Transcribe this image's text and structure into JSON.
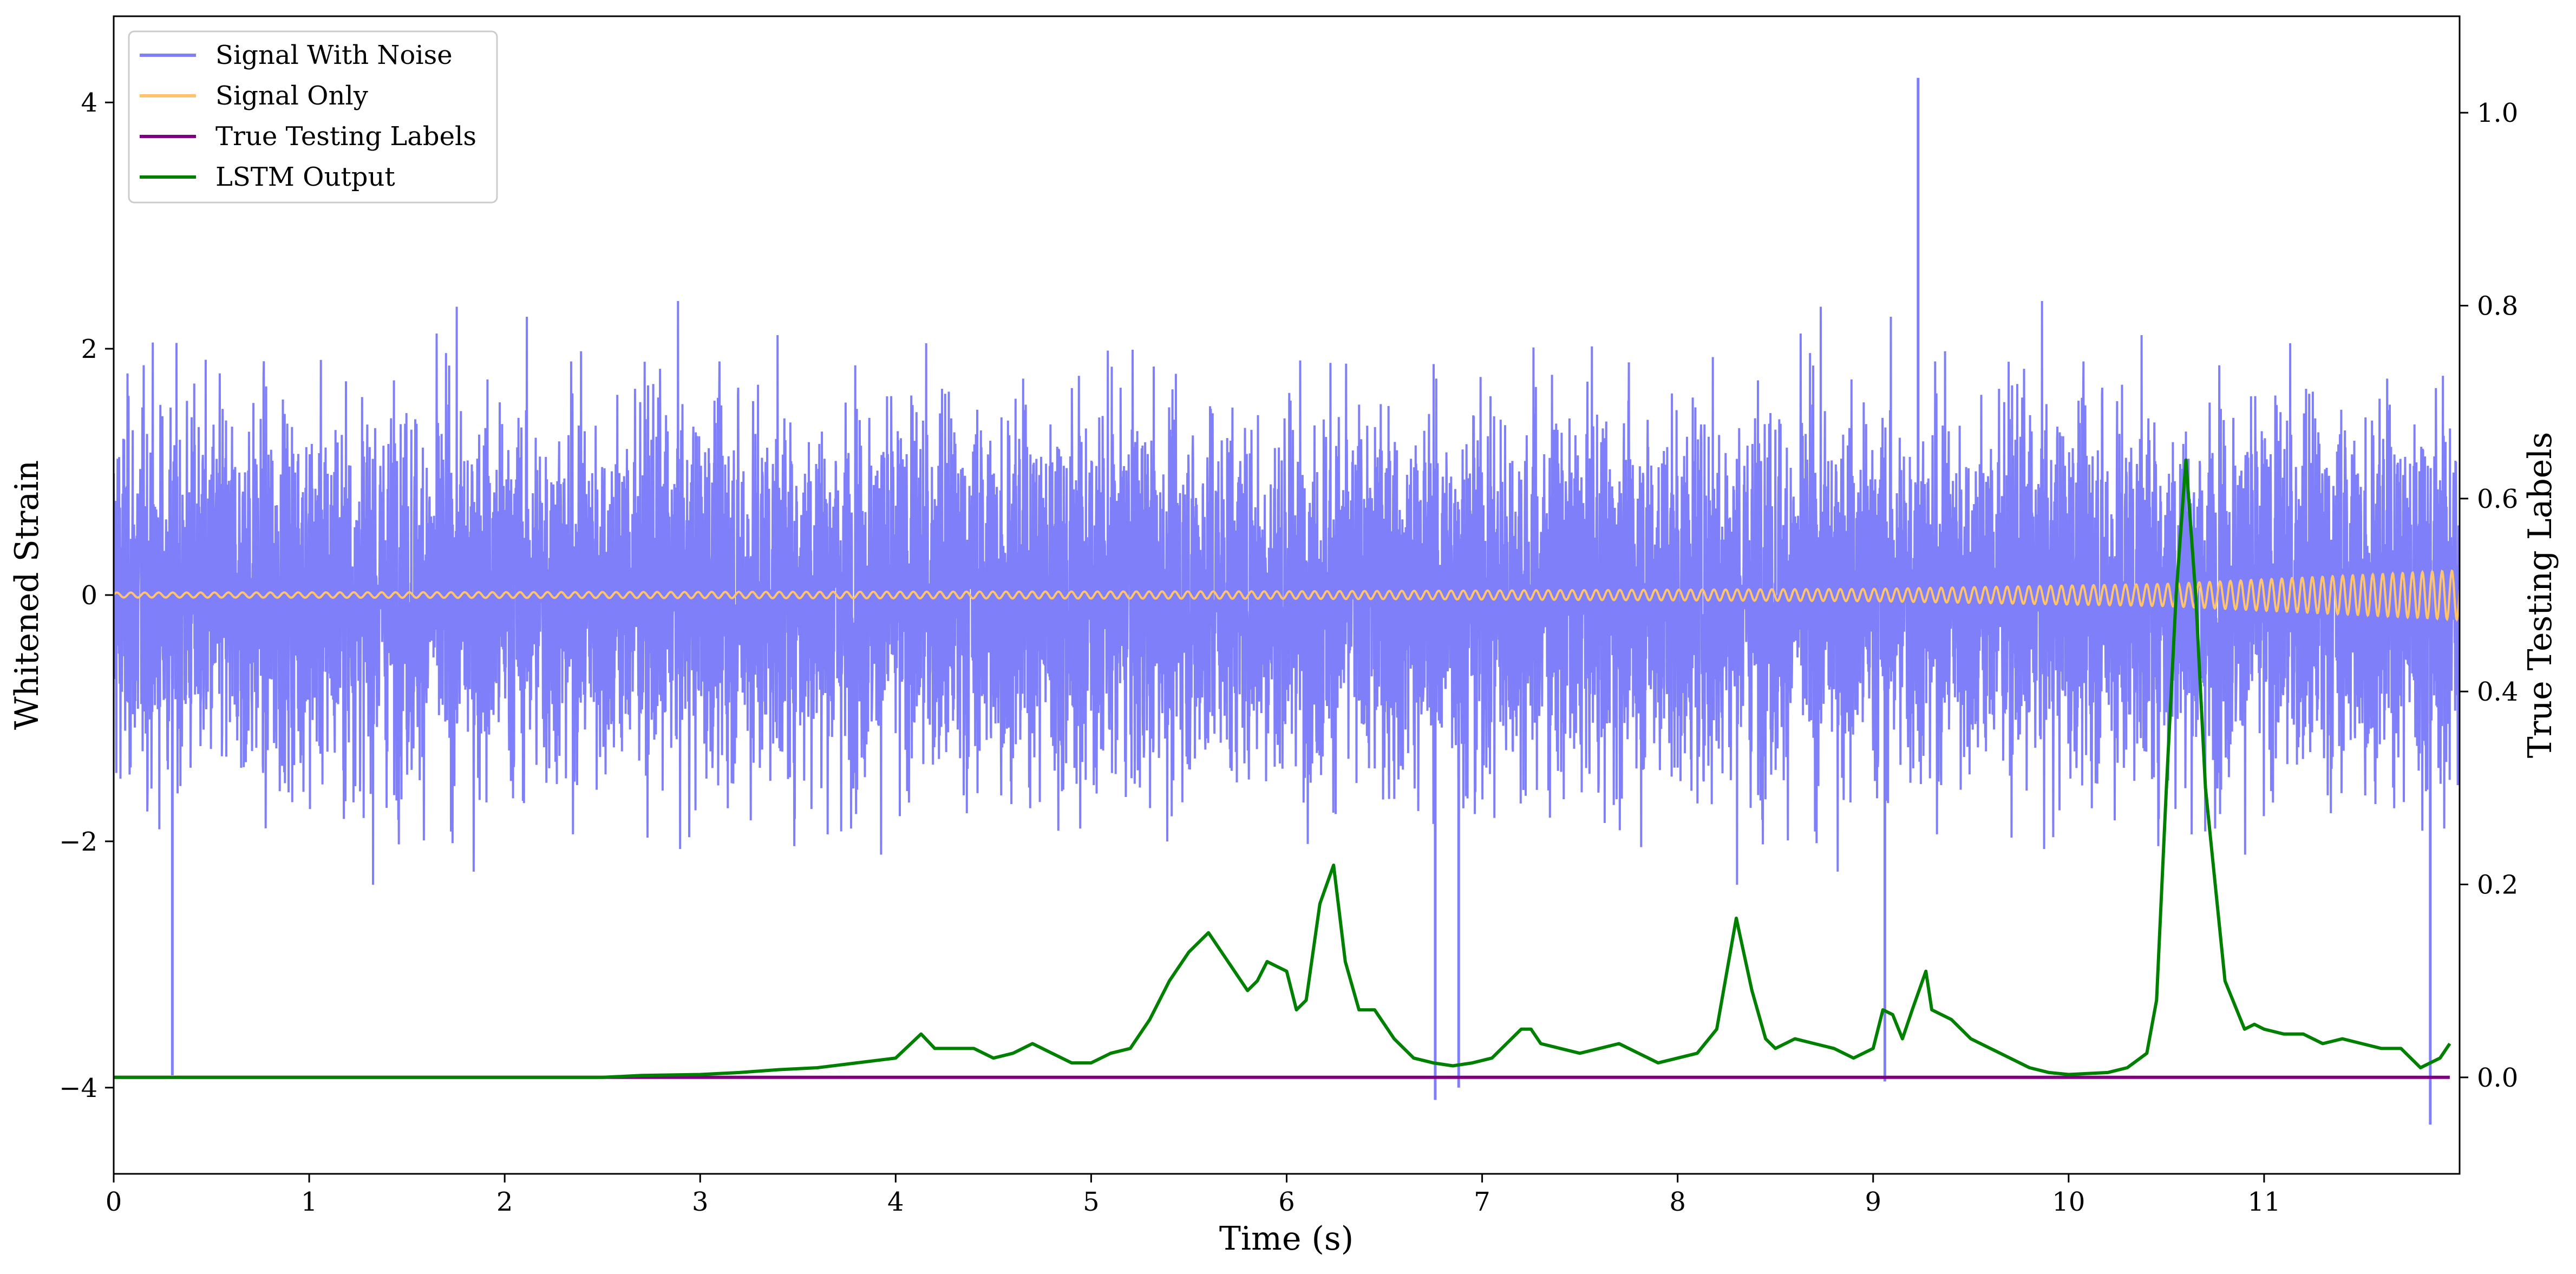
{
  "chart_data": {
    "type": "line",
    "xlabel": "Time (s)",
    "ylabel": "Whitened Strain",
    "y2label": "True Testing Labels",
    "xlim": [
      0,
      12
    ],
    "ylim": [
      -4.7,
      4.7
    ],
    "y2lim": [
      -0.1,
      1.1
    ],
    "x_ticks": [
      0,
      1,
      2,
      3,
      4,
      5,
      6,
      7,
      8,
      9,
      10,
      11
    ],
    "y_ticks": [
      -4,
      -2,
      0,
      2,
      4
    ],
    "y_tick_labels": [
      "−4",
      "−2",
      "0",
      "2",
      "4"
    ],
    "y2_ticks": [
      0.0,
      0.2,
      0.4,
      0.6,
      0.8,
      1.0
    ],
    "y2_tick_labels": [
      "0.0",
      "0.2",
      "0.4",
      "0.6",
      "0.8",
      "1.0"
    ],
    "grid": false,
    "legend_position": "top-left",
    "legend": [
      {
        "label": "Signal With Noise",
        "color": "#7f7ffa"
      },
      {
        "label": "Signal Only",
        "color": "#ffc46b"
      },
      {
        "label": "True Testing Labels",
        "color": "#800080"
      },
      {
        "label": "LSTM Output",
        "color": "#008000"
      }
    ],
    "series": [
      {
        "name": "Signal With Noise",
        "axis": "left",
        "color": "#7f7ffa",
        "description": "dense white noise, roughly between -3.5 and 3.7, extremes -4.3 and 4.2",
        "spikes": [
          {
            "x": 0.3,
            "y": -3.9
          },
          {
            "x": 6.76,
            "y": -4.1
          },
          {
            "x": 6.88,
            "y": -4.0
          },
          {
            "x": 9.06,
            "y": -3.95
          },
          {
            "x": 9.23,
            "y": 4.2
          },
          {
            "x": 11.85,
            "y": -4.3
          }
        ]
      },
      {
        "name": "Signal Only",
        "axis": "left",
        "color": "#ffc46b",
        "description": "chirp around 0 with amplitude growing toward the end",
        "envelope": [
          [
            0,
            0.02
          ],
          [
            6,
            0.03
          ],
          [
            9,
            0.05
          ],
          [
            10.5,
            0.09
          ],
          [
            12,
            0.2
          ]
        ]
      },
      {
        "name": "True Testing Labels",
        "axis": "right",
        "color": "#800080",
        "x": [
          0,
          11.95
        ],
        "values": [
          0.0,
          0.0
        ]
      },
      {
        "name": "LSTM Output",
        "axis": "right",
        "color": "#008000",
        "x": [
          0,
          0.5,
          1.0,
          1.5,
          2.0,
          2.5,
          2.7,
          3.0,
          3.2,
          3.4,
          3.6,
          3.8,
          4.0,
          4.13,
          4.2,
          4.4,
          4.5,
          4.6,
          4.7,
          4.8,
          4.9,
          5.0,
          5.1,
          5.2,
          5.3,
          5.4,
          5.5,
          5.6,
          5.7,
          5.8,
          5.85,
          5.9,
          6.0,
          6.05,
          6.1,
          6.17,
          6.24,
          6.3,
          6.37,
          6.45,
          6.55,
          6.65,
          6.75,
          6.85,
          6.95,
          7.05,
          7.15,
          7.2,
          7.25,
          7.3,
          7.4,
          7.5,
          7.6,
          7.7,
          7.8,
          7.9,
          8.0,
          8.1,
          8.2,
          8.3,
          8.38,
          8.45,
          8.5,
          8.6,
          8.7,
          8.8,
          8.9,
          9.0,
          9.05,
          9.1,
          9.15,
          9.2,
          9.27,
          9.3,
          9.4,
          9.5,
          9.6,
          9.7,
          9.8,
          9.9,
          10.0,
          10.2,
          10.3,
          10.4,
          10.45,
          10.5,
          10.55,
          10.6,
          10.65,
          10.7,
          10.75,
          10.8,
          10.9,
          10.95,
          11.0,
          11.1,
          11.2,
          11.3,
          11.4,
          11.5,
          11.6,
          11.7,
          11.8,
          11.9,
          11.95
        ],
        "values": [
          0.0,
          0.0,
          0.0,
          0.0,
          0.0,
          0.0,
          0.002,
          0.003,
          0.005,
          0.008,
          0.01,
          0.015,
          0.02,
          0.045,
          0.03,
          0.03,
          0.02,
          0.025,
          0.035,
          0.025,
          0.015,
          0.015,
          0.025,
          0.03,
          0.06,
          0.1,
          0.13,
          0.15,
          0.12,
          0.09,
          0.1,
          0.12,
          0.11,
          0.07,
          0.08,
          0.18,
          0.22,
          0.12,
          0.07,
          0.07,
          0.04,
          0.02,
          0.015,
          0.012,
          0.015,
          0.02,
          0.04,
          0.05,
          0.05,
          0.035,
          0.03,
          0.025,
          0.03,
          0.035,
          0.025,
          0.015,
          0.02,
          0.025,
          0.05,
          0.165,
          0.09,
          0.04,
          0.03,
          0.04,
          0.035,
          0.03,
          0.02,
          0.03,
          0.07,
          0.065,
          0.04,
          0.07,
          0.11,
          0.07,
          0.06,
          0.04,
          0.03,
          0.02,
          0.01,
          0.005,
          0.003,
          0.005,
          0.01,
          0.025,
          0.08,
          0.3,
          0.5,
          0.64,
          0.5,
          0.3,
          0.2,
          0.1,
          0.05,
          0.055,
          0.05,
          0.045,
          0.045,
          0.035,
          0.04,
          0.035,
          0.03,
          0.03,
          0.01,
          0.02,
          0.035
        ]
      }
    ]
  }
}
